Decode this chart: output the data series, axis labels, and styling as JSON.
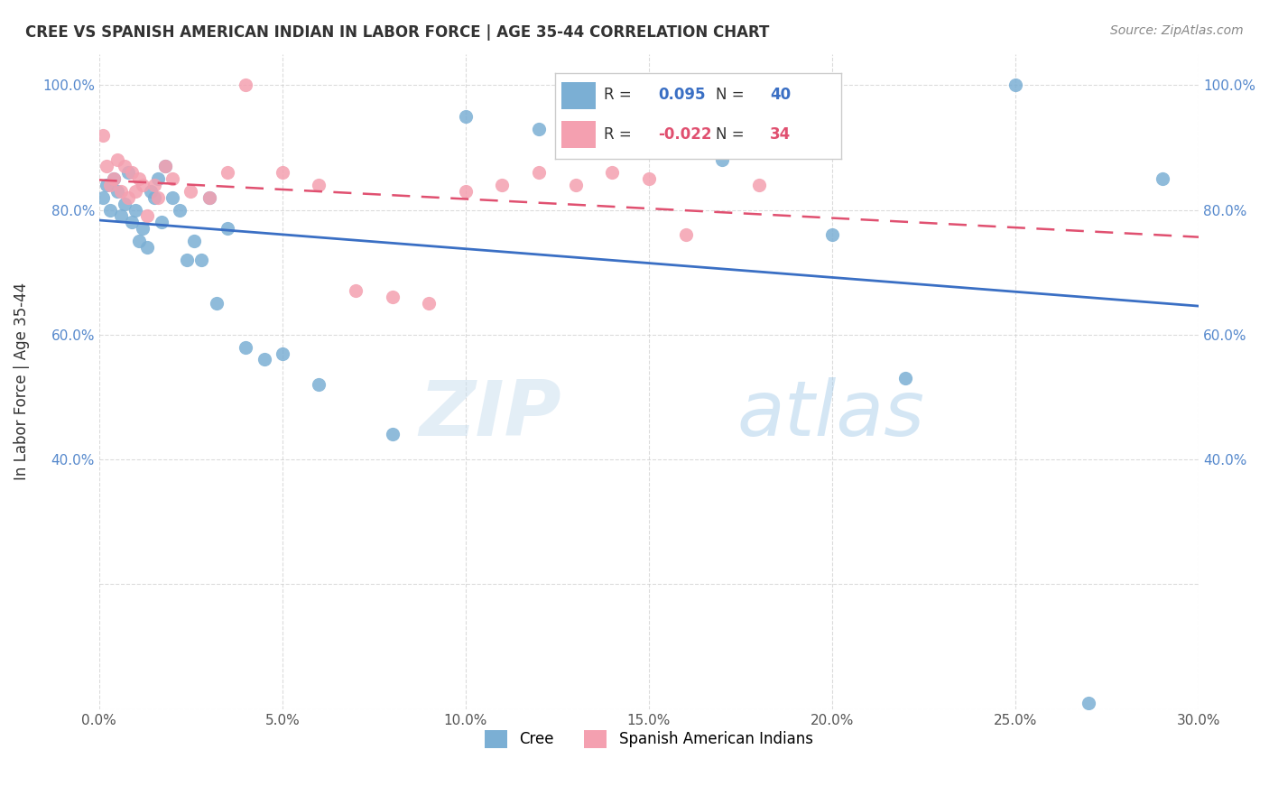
{
  "title": "CREE VS SPANISH AMERICAN INDIAN IN LABOR FORCE | AGE 35-44 CORRELATION CHART",
  "source": "Source: ZipAtlas.com",
  "xlabel": "",
  "ylabel": "In Labor Force | Age 35-44",
  "xlim": [
    0.0,
    0.3
  ],
  "ylim": [
    0.0,
    1.05
  ],
  "cree_R": 0.095,
  "cree_N": 40,
  "spanish_R": -0.022,
  "spanish_N": 34,
  "cree_color": "#7bafd4",
  "spanish_color": "#f4a0b0",
  "cree_line_color": "#3a6fc4",
  "spanish_line_color": "#e05070",
  "watermark_zip": "ZIP",
  "watermark_atlas": "atlas",
  "cree_x": [
    0.001,
    0.002,
    0.003,
    0.004,
    0.005,
    0.006,
    0.007,
    0.008,
    0.009,
    0.01,
    0.011,
    0.012,
    0.013,
    0.014,
    0.015,
    0.016,
    0.017,
    0.018,
    0.02,
    0.022,
    0.024,
    0.026,
    0.028,
    0.03,
    0.032,
    0.035,
    0.04,
    0.045,
    0.05,
    0.06,
    0.08,
    0.1,
    0.12,
    0.15,
    0.17,
    0.2,
    0.22,
    0.25,
    0.27,
    0.29
  ],
  "cree_y": [
    0.82,
    0.84,
    0.8,
    0.85,
    0.83,
    0.79,
    0.81,
    0.86,
    0.78,
    0.8,
    0.75,
    0.77,
    0.74,
    0.83,
    0.82,
    0.85,
    0.78,
    0.87,
    0.82,
    0.8,
    0.72,
    0.75,
    0.72,
    0.82,
    0.65,
    0.77,
    0.58,
    0.56,
    0.57,
    0.52,
    0.44,
    0.95,
    0.93,
    1.0,
    0.88,
    0.76,
    0.53,
    1.0,
    0.01,
    0.85
  ],
  "spanish_x": [
    0.001,
    0.002,
    0.003,
    0.004,
    0.005,
    0.006,
    0.007,
    0.008,
    0.009,
    0.01,
    0.011,
    0.012,
    0.013,
    0.015,
    0.016,
    0.018,
    0.02,
    0.025,
    0.03,
    0.035,
    0.04,
    0.05,
    0.06,
    0.07,
    0.08,
    0.09,
    0.1,
    0.11,
    0.12,
    0.13,
    0.14,
    0.15,
    0.16,
    0.18
  ],
  "spanish_y": [
    0.92,
    0.87,
    0.84,
    0.85,
    0.88,
    0.83,
    0.87,
    0.82,
    0.86,
    0.83,
    0.85,
    0.84,
    0.79,
    0.84,
    0.82,
    0.87,
    0.85,
    0.83,
    0.82,
    0.86,
    1.0,
    0.86,
    0.84,
    0.67,
    0.66,
    0.65,
    0.83,
    0.84,
    0.86,
    0.84,
    0.86,
    0.85,
    0.76,
    0.84
  ]
}
